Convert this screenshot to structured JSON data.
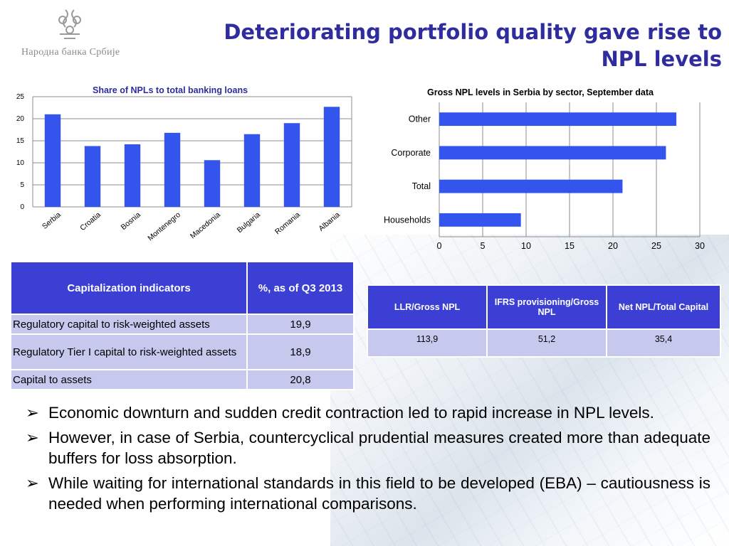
{
  "logo": {
    "text": "Народна банка Србије"
  },
  "title": {
    "line1": "Deteriorating portfolio quality gave rise to",
    "line2": "NPL levels"
  },
  "chart_data": [
    {
      "type": "bar",
      "title": "Share of NPLs to total banking loans",
      "categories": [
        "Serbia",
        "Croatia",
        "Bosnia",
        "Montenegro",
        "Macedonia",
        "Bulgaria",
        "Romania",
        "Albania"
      ],
      "values": [
        21.0,
        13.8,
        14.2,
        16.8,
        10.6,
        16.5,
        19.0,
        22.7
      ],
      "ylim": [
        0,
        25
      ],
      "yticks": [
        0,
        5,
        10,
        15,
        20,
        25
      ],
      "grid": true,
      "color": "#3355ee"
    },
    {
      "type": "bar",
      "orientation": "horizontal",
      "title": "Gross NPL levels in Serbia by sector, September data",
      "categories": [
        "Other",
        "Corporate",
        "Total",
        "Households"
      ],
      "values": [
        27.3,
        26.1,
        21.1,
        9.4
      ],
      "xlim": [
        0,
        30
      ],
      "xticks": [
        0,
        5,
        10,
        15,
        20,
        25,
        30
      ],
      "grid": true,
      "color": "#3355ee"
    }
  ],
  "cap_table": {
    "header": [
      "Capitalization indicators",
      "%, as of Q3 2013"
    ],
    "rows": [
      {
        "label": "Regulatory capital to risk-weighted assets",
        "value": "19,9"
      },
      {
        "label": "Regulatory Tier I capital to risk-weighted assets",
        "value": "18,9"
      },
      {
        "label": "Capital to assets",
        "value": "20,8"
      }
    ]
  },
  "npl_table": {
    "header": [
      "LLR/Gross NPL",
      "IFRS provisioning/Gross NPL",
      "Net NPL/Total Capital"
    ],
    "row": [
      "113,9",
      "51,2",
      "35,4"
    ]
  },
  "bullets": {
    "marker": "➢",
    "items": [
      "Economic downturn and sudden credit contraction led to rapid increase in NPL levels.",
      "However, in case of Serbia, countercyclical prudential measures created more than adequate buffers for loss absorption.",
      "While waiting for international standards in this field to be developed (EBA) – cautiousness is needed when performing international comparisons."
    ]
  }
}
